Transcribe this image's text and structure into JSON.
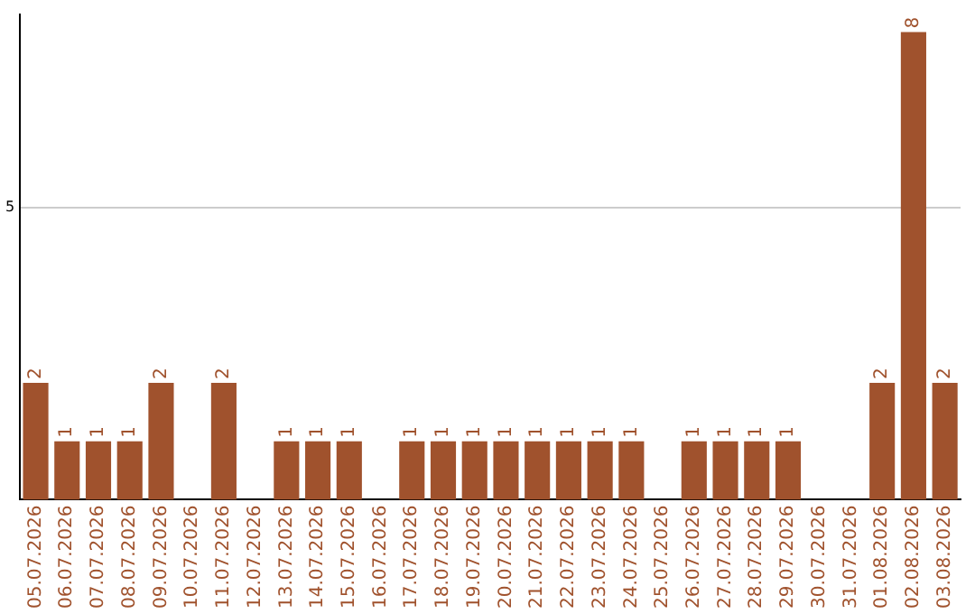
{
  "chart_data": {
    "type": "bar",
    "categories": [
      "05.07.2026",
      "06.07.2026",
      "07.07.2026",
      "08.07.2026",
      "09.07.2026",
      "10.07.2026",
      "11.07.2026",
      "12.07.2026",
      "13.07.2026",
      "14.07.2026",
      "15.07.2026",
      "16.07.2026",
      "17.07.2026",
      "18.07.2026",
      "19.07.2026",
      "20.07.2026",
      "21.07.2026",
      "22.07.2026",
      "23.07.2026",
      "24.07.2026",
      "25.07.2026",
      "26.07.2026",
      "27.07.2026",
      "28.07.2026",
      "29.07.2026",
      "30.07.2026",
      "31.07.2026",
      "01.08.2026",
      "02.08.2026",
      "03.08.2026"
    ],
    "values": [
      2,
      1,
      1,
      1,
      2,
      0,
      2,
      0,
      1,
      1,
      1,
      0,
      1,
      1,
      1,
      1,
      1,
      1,
      1,
      1,
      0,
      1,
      1,
      1,
      1,
      0,
      0,
      2,
      8,
      2
    ],
    "value_labels": [
      "2",
      "1",
      "1",
      "1",
      "2",
      null,
      "2",
      null,
      "1",
      "1",
      "1",
      null,
      "1",
      "1",
      "1",
      "1",
      "1",
      "1",
      "1",
      "1",
      null,
      "1",
      "1",
      "1",
      "1",
      null,
      null,
      "2",
      "8",
      "2"
    ],
    "color": "#a0522d",
    "ylim": [
      0,
      8.3
    ],
    "yticks": [
      5
    ],
    "grid": "y"
  }
}
